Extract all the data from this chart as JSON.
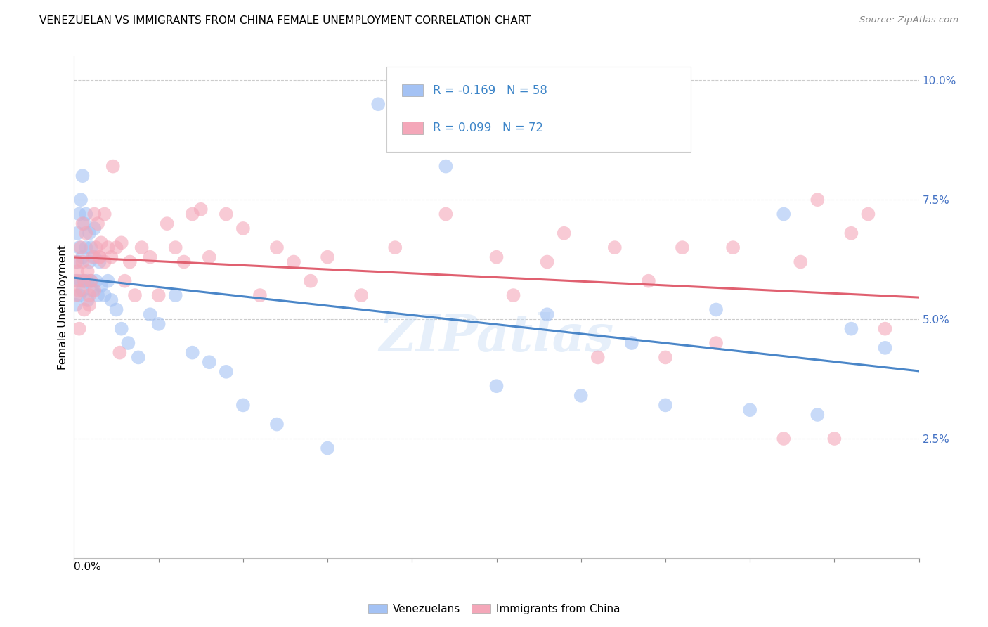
{
  "title": "VENEZUELAN VS IMMIGRANTS FROM CHINA FEMALE UNEMPLOYMENT CORRELATION CHART",
  "source": "Source: ZipAtlas.com",
  "ylabel": "Female Unemployment",
  "right_yticks": [
    0.025,
    0.05,
    0.075,
    0.1
  ],
  "right_yticklabels": [
    "2.5%",
    "5.0%",
    "7.5%",
    "10.0%"
  ],
  "watermark": "ZIPatlas",
  "blue_color": "#a4c2f4",
  "pink_color": "#f4a7b9",
  "blue_line_color": "#4a86c8",
  "pink_line_color": "#e06070",
  "blue_legend_color": "#a4c2f4",
  "pink_legend_color": "#f4a7b9",
  "legend_text_color": "#3d85c8",
  "venezuelans_x": [
    0.001,
    0.001,
    0.002,
    0.002,
    0.003,
    0.003,
    0.003,
    0.004,
    0.004,
    0.005,
    0.005,
    0.005,
    0.006,
    0.006,
    0.007,
    0.007,
    0.008,
    0.008,
    0.009,
    0.009,
    0.01,
    0.01,
    0.011,
    0.012,
    0.012,
    0.013,
    0.014,
    0.015,
    0.016,
    0.018,
    0.02,
    0.022,
    0.025,
    0.028,
    0.032,
    0.038,
    0.045,
    0.05,
    0.06,
    0.07,
    0.08,
    0.09,
    0.1,
    0.12,
    0.15,
    0.18,
    0.22,
    0.28,
    0.33,
    0.38,
    0.42,
    0.46,
    0.48,
    0.25,
    0.3,
    0.35,
    0.4,
    0.44
  ],
  "venezuelans_y": [
    0.058,
    0.053,
    0.062,
    0.068,
    0.072,
    0.055,
    0.065,
    0.075,
    0.058,
    0.08,
    0.056,
    0.063,
    0.07,
    0.058,
    0.065,
    0.072,
    0.058,
    0.054,
    0.062,
    0.068,
    0.058,
    0.065,
    0.056,
    0.063,
    0.069,
    0.058,
    0.055,
    0.062,
    0.057,
    0.055,
    0.058,
    0.054,
    0.052,
    0.048,
    0.045,
    0.042,
    0.051,
    0.049,
    0.055,
    0.043,
    0.041,
    0.039,
    0.032,
    0.028,
    0.023,
    0.095,
    0.082,
    0.051,
    0.045,
    0.052,
    0.072,
    0.048,
    0.044,
    0.036,
    0.034,
    0.032,
    0.031,
    0.03
  ],
  "china_x": [
    0.001,
    0.001,
    0.002,
    0.002,
    0.003,
    0.004,
    0.005,
    0.005,
    0.006,
    0.007,
    0.008,
    0.009,
    0.01,
    0.011,
    0.012,
    0.013,
    0.014,
    0.015,
    0.016,
    0.018,
    0.02,
    0.022,
    0.025,
    0.028,
    0.03,
    0.033,
    0.036,
    0.04,
    0.045,
    0.05,
    0.055,
    0.06,
    0.065,
    0.07,
    0.075,
    0.08,
    0.09,
    0.1,
    0.11,
    0.12,
    0.13,
    0.14,
    0.15,
    0.17,
    0.19,
    0.22,
    0.25,
    0.28,
    0.32,
    0.35,
    0.38,
    0.42,
    0.44,
    0.46,
    0.48,
    0.003,
    0.006,
    0.009,
    0.012,
    0.015,
    0.018,
    0.023,
    0.027,
    0.31,
    0.36,
    0.26,
    0.43,
    0.47,
    0.29,
    0.34,
    0.39,
    0.45
  ],
  "china_y": [
    0.055,
    0.062,
    0.06,
    0.058,
    0.056,
    0.065,
    0.062,
    0.07,
    0.052,
    0.068,
    0.06,
    0.055,
    0.058,
    0.063,
    0.056,
    0.065,
    0.07,
    0.063,
    0.066,
    0.062,
    0.065,
    0.063,
    0.065,
    0.066,
    0.058,
    0.062,
    0.055,
    0.065,
    0.063,
    0.055,
    0.07,
    0.065,
    0.062,
    0.072,
    0.073,
    0.063,
    0.072,
    0.069,
    0.055,
    0.065,
    0.062,
    0.058,
    0.063,
    0.055,
    0.065,
    0.072,
    0.063,
    0.062,
    0.065,
    0.042,
    0.045,
    0.025,
    0.075,
    0.068,
    0.048,
    0.048,
    0.058,
    0.053,
    0.072,
    0.063,
    0.072,
    0.082,
    0.043,
    0.042,
    0.065,
    0.055,
    0.062,
    0.072,
    0.068,
    0.058,
    0.065,
    0.025
  ],
  "xlim": [
    0,
    0.5
  ],
  "ylim": [
    0.0,
    0.105
  ],
  "xtick_positions": [
    0.0,
    0.05,
    0.1,
    0.15,
    0.2,
    0.25,
    0.3,
    0.35,
    0.4,
    0.45,
    0.5
  ]
}
